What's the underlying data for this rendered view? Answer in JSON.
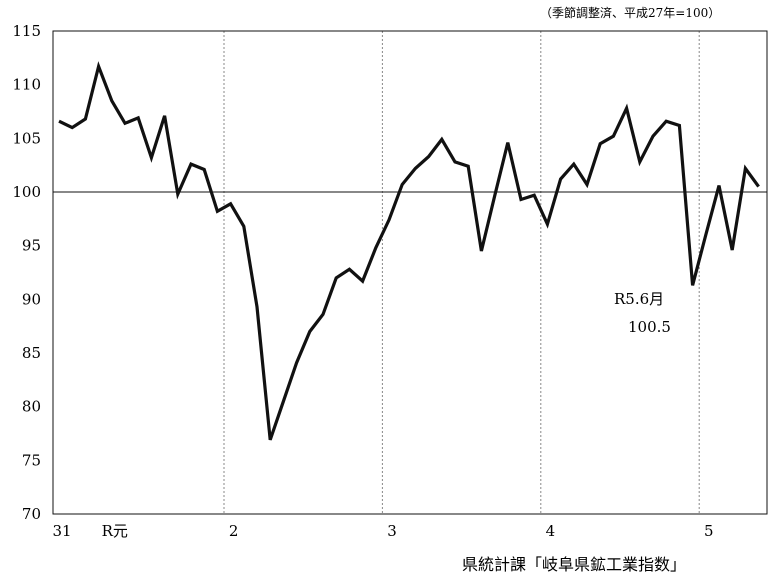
{
  "chart_data": {
    "type": "line",
    "title": "",
    "xlabel": "",
    "ylabel": "",
    "scale_note": "（季節調整済、平成27年=100）",
    "source_text": "県統計課「岐阜県鉱工業指数」",
    "ylim": [
      70,
      115
    ],
    "y_ticks": [
      70,
      75,
      80,
      85,
      90,
      95,
      100,
      105,
      110,
      115
    ],
    "reference_line": 100,
    "grid": "vertical dotted lines at year boundaries",
    "x_labels": [
      {
        "label": "31",
        "index": 0
      },
      {
        "label": "R元",
        "index": 4
      },
      {
        "label": "2",
        "index": 13
      },
      {
        "label": "3",
        "index": 25
      },
      {
        "label": "4",
        "index": 37
      },
      {
        "label": "5",
        "index": 49
      }
    ],
    "year_boundaries": [
      12.5,
      24.5,
      36.5,
      48.5
    ],
    "series": [
      {
        "values": [
          106.6,
          106.0,
          106.8,
          111.7,
          108.5,
          106.4,
          106.9,
          103.2,
          107.1,
          99.8,
          102.6,
          102.1,
          98.2,
          98.9,
          96.8,
          89.3,
          76.9,
          80.5,
          84.1,
          87.0,
          88.6,
          92.0,
          92.8,
          91.7,
          94.8,
          97.4,
          100.7,
          102.2,
          103.3,
          104.9,
          102.8,
          102.4,
          94.5,
          99.6,
          104.6,
          99.3,
          99.7,
          97.0,
          101.2,
          102.6,
          100.7,
          104.5,
          105.2,
          107.8,
          102.8,
          105.2,
          106.6,
          106.2,
          91.3,
          96.0,
          100.6,
          94.6,
          102.2,
          100.5
        ]
      }
    ],
    "annotation": {
      "line1": "R5.6月",
      "line2": "100.5"
    },
    "colors": {
      "line": "#111111",
      "grid": "#888888",
      "axis": "#111111"
    }
  }
}
